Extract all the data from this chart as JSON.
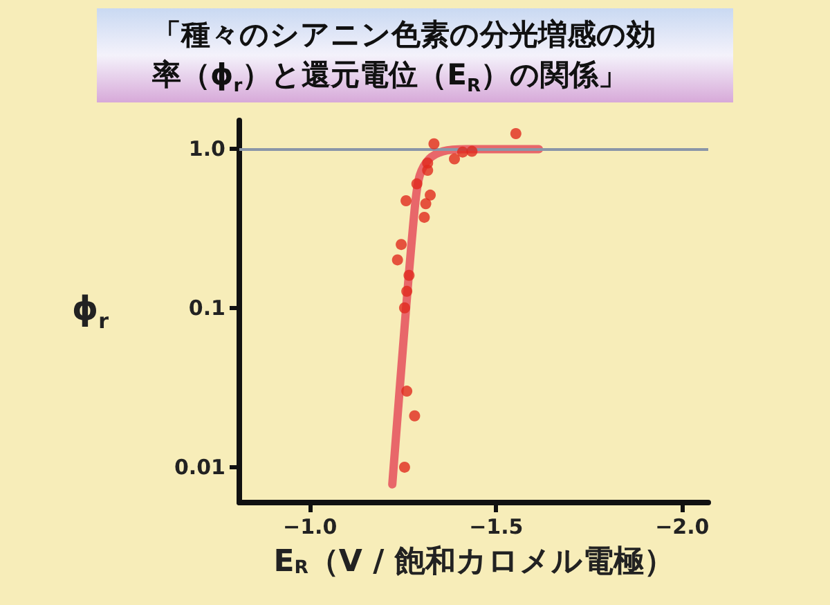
{
  "chart_data": {
    "type": "scatter",
    "title": "「種々のシアニン色素の分光増感の効率（ϕ$_{r}$）と還元電位（E$_{R}$）の関係」",
    "xlabel": "E$_{R}$（V / 飽和カロメル電極）",
    "ylabel": "ϕ$_{r}$",
    "xlim": [
      -0.81,
      -2.07
    ],
    "xticks": [
      {
        "value": -1.0,
        "label": "−1.0"
      },
      {
        "value": -1.5,
        "label": "−1.5"
      },
      {
        "value": -2.0,
        "label": "−2.0"
      }
    ],
    "ylim": [
      0.006,
      1.5
    ],
    "yticks": [
      {
        "value": 1,
        "label": "1.0"
      },
      0.1,
      0.01
    ],
    "log": "y",
    "grid": false,
    "marker": "circle",
    "ref_lines": [
      {
        "axis": "y",
        "value": 1,
        "color": "#8a96a8"
      }
    ],
    "series": [
      {
        "color": "#e02a1e",
        "x": [
          -1.553,
          -1.333,
          -1.388,
          -1.41,
          -1.435,
          -1.316,
          -1.316,
          -1.287,
          -1.258,
          -1.323,
          -1.311,
          -1.307,
          -1.245,
          -1.235,
          -1.266,
          -1.26,
          -1.254,
          -1.26,
          -1.281,
          -1.254
        ],
        "values": [
          1.24,
          1.07,
          0.86,
          0.95,
          0.96,
          0.81,
          0.73,
          0.6,
          0.47,
          0.51,
          0.45,
          0.37,
          0.25,
          0.2,
          0.16,
          0.127,
          0.1,
          0.03,
          0.021,
          0.01
        ]
      },
      {
        "type": "line",
        "marker": "none",
        "color": "#e8676a",
        "line_style": "solid",
        "x": [
          -1.221,
          -1.258,
          -1.283,
          -1.295,
          -1.32,
          -1.357,
          -1.419,
          -1.615
        ],
        "values": [
          0.0078,
          0.099,
          0.46,
          0.68,
          0.86,
          0.96,
          0.99,
          0.99
        ]
      }
    ]
  }
}
